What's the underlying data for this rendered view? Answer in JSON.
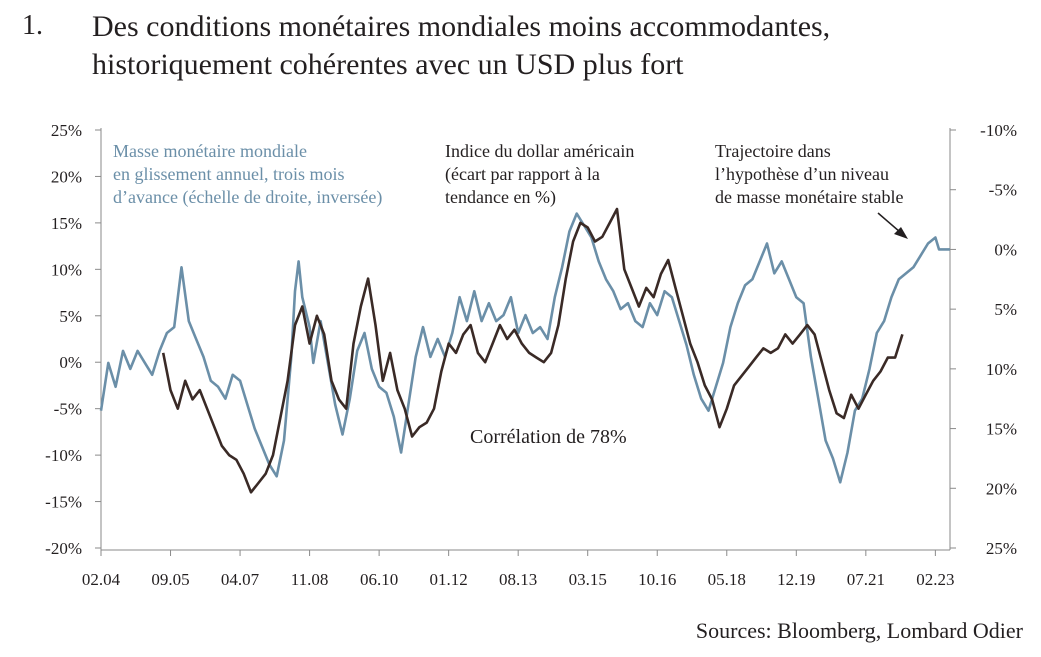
{
  "header": {
    "number": "1.",
    "title_line1": "Des conditions monétaires mondiales moins accommodantes,",
    "title_line2": "historiquement cohérentes avec un USD plus fort"
  },
  "source": "Sources: Bloomberg, Lombard Odier",
  "colors": {
    "money_supply": "#6b8fa8",
    "usd": "#3a2a26",
    "axis": "#8a8a8a"
  },
  "chart_data": {
    "type": "line",
    "grid": false,
    "left_axis": {
      "ylim": [
        -20,
        25
      ],
      "ticks": [
        "25%",
        "20%",
        "15%",
        "10%",
        "5%",
        "0%",
        "-5%",
        "-10%",
        "-15%",
        "-20%"
      ]
    },
    "right_axis": {
      "ylim": [
        25,
        -10
      ],
      "inverted": true,
      "ticks": [
        "-10%",
        "-5%",
        "0%",
        "5%",
        "10%",
        "15%",
        "20%",
        "25%"
      ]
    },
    "x_ticks": [
      "02.04",
      "09.05",
      "04.07",
      "11.08",
      "06.10",
      "01.12",
      "08.13",
      "03.15",
      "10.16",
      "05.18",
      "12.19",
      "07.21",
      "02.23"
    ],
    "x_range": [
      "2004-02",
      "2023-06"
    ],
    "annotations": {
      "money_label": [
        "Masse monétaire mondiale",
        "en glissement annuel, trois mois",
        "d’avance (échelle de droite, inversée)"
      ],
      "usd_label": [
        "Indice du dollar américain",
        "(écart par rapport à la",
        "tendance en %)"
      ],
      "trajectory_label": [
        "Trajectoire dans",
        "l’hypothèse d’un niveau",
        "de masse monétaire stable"
      ],
      "correlation": "Corrélation de 78%"
    },
    "series": [
      {
        "key": "money",
        "axis": "right",
        "points": [
          [
            "2004-02",
            13.5
          ],
          [
            "2004-04",
            9.5
          ],
          [
            "2004-06",
            11.5
          ],
          [
            "2004-08",
            8.5
          ],
          [
            "2004-10",
            10.0
          ],
          [
            "2004-12",
            8.5
          ],
          [
            "2005-02",
            9.5
          ],
          [
            "2005-04",
            10.5
          ],
          [
            "2005-06",
            8.5
          ],
          [
            "2005-08",
            7.0
          ],
          [
            "2005-10",
            6.5
          ],
          [
            "2005-12",
            1.5
          ],
          [
            "2006-02",
            6.0
          ],
          [
            "2006-04",
            7.5
          ],
          [
            "2006-06",
            9.0
          ],
          [
            "2006-08",
            11.0
          ],
          [
            "2006-10",
            11.5
          ],
          [
            "2006-12",
            12.5
          ],
          [
            "2007-02",
            10.5
          ],
          [
            "2007-04",
            11.0
          ],
          [
            "2007-06",
            13.0
          ],
          [
            "2007-08",
            15.0
          ],
          [
            "2007-10",
            16.5
          ],
          [
            "2007-12",
            18.0
          ],
          [
            "2008-02",
            19.0
          ],
          [
            "2008-04",
            16.0
          ],
          [
            "2008-06",
            9.0
          ],
          [
            "2008-07",
            3.5
          ],
          [
            "2008-08",
            1.0
          ],
          [
            "2008-09",
            4.0
          ],
          [
            "2008-11",
            6.5
          ],
          [
            "2008-12",
            9.5
          ],
          [
            "2009-02",
            6.0
          ],
          [
            "2009-04",
            9.5
          ],
          [
            "2009-06",
            13.0
          ],
          [
            "2009-08",
            15.5
          ],
          [
            "2009-10",
            12.5
          ],
          [
            "2009-12",
            8.5
          ],
          [
            "2010-02",
            7.0
          ],
          [
            "2010-04",
            10.0
          ],
          [
            "2010-06",
            11.5
          ],
          [
            "2010-08",
            12.0
          ],
          [
            "2010-10",
            14.0
          ],
          [
            "2010-12",
            17.0
          ],
          [
            "2011-02",
            13.0
          ],
          [
            "2011-04",
            9.0
          ],
          [
            "2011-06",
            6.5
          ],
          [
            "2011-08",
            9.0
          ],
          [
            "2011-10",
            7.5
          ],
          [
            "2011-12",
            9.0
          ],
          [
            "2012-02",
            7.0
          ],
          [
            "2012-04",
            4.0
          ],
          [
            "2012-06",
            6.0
          ],
          [
            "2012-08",
            3.5
          ],
          [
            "2012-10",
            6.0
          ],
          [
            "2012-12",
            4.5
          ],
          [
            "2013-02",
            6.0
          ],
          [
            "2013-04",
            5.5
          ],
          [
            "2013-06",
            4.0
          ],
          [
            "2013-08",
            7.0
          ],
          [
            "2013-10",
            5.5
          ],
          [
            "2013-12",
            7.0
          ],
          [
            "2014-02",
            6.5
          ],
          [
            "2014-04",
            7.5
          ],
          [
            "2014-06",
            4.0
          ],
          [
            "2014-08",
            1.5
          ],
          [
            "2014-10",
            -1.5
          ],
          [
            "2014-12",
            -3.0
          ],
          [
            "2015-02",
            -2.0
          ],
          [
            "2015-04",
            -1.0
          ],
          [
            "2015-06",
            1.0
          ],
          [
            "2015-08",
            2.5
          ],
          [
            "2015-10",
            3.5
          ],
          [
            "2015-12",
            5.0
          ],
          [
            "2016-02",
            4.5
          ],
          [
            "2016-04",
            6.0
          ],
          [
            "2016-06",
            6.5
          ],
          [
            "2016-08",
            4.5
          ],
          [
            "2016-10",
            5.5
          ],
          [
            "2016-12",
            3.5
          ],
          [
            "2017-02",
            4.0
          ],
          [
            "2017-04",
            6.0
          ],
          [
            "2017-06",
            8.0
          ],
          [
            "2017-08",
            10.5
          ],
          [
            "2017-10",
            12.5
          ],
          [
            "2017-12",
            13.5
          ],
          [
            "2018-02",
            11.5
          ],
          [
            "2018-04",
            9.5
          ],
          [
            "2018-06",
            6.5
          ],
          [
            "2018-08",
            4.5
          ],
          [
            "2018-10",
            3.0
          ],
          [
            "2018-12",
            2.5
          ],
          [
            "2019-02",
            1.0
          ],
          [
            "2019-04",
            -0.5
          ],
          [
            "2019-06",
            2.0
          ],
          [
            "2019-08",
            1.0
          ],
          [
            "2019-10",
            2.5
          ],
          [
            "2019-12",
            4.0
          ],
          [
            "2020-02",
            4.5
          ],
          [
            "2020-04",
            9.0
          ],
          [
            "2020-06",
            12.5
          ],
          [
            "2020-08",
            16.0
          ],
          [
            "2020-10",
            17.5
          ],
          [
            "2020-12",
            19.5
          ],
          [
            "2021-02",
            17.0
          ],
          [
            "2021-04",
            13.5
          ],
          [
            "2021-06",
            12.5
          ],
          [
            "2021-08",
            10.0
          ],
          [
            "2021-10",
            7.0
          ],
          [
            "2021-12",
            6.0
          ],
          [
            "2022-02",
            4.0
          ],
          [
            "2022-04",
            2.5
          ],
          [
            "2022-06",
            2.0
          ],
          [
            "2022-08",
            1.5
          ],
          [
            "2022-10",
            0.5
          ],
          [
            "2022-12",
            -0.5
          ],
          [
            "2023-02",
            -1.0
          ],
          [
            "2023-03",
            0.0
          ],
          [
            "2023-04",
            0.0
          ],
          [
            "2023-06",
            0.0
          ]
        ]
      },
      {
        "key": "usd",
        "axis": "left",
        "points": [
          [
            "2005-07",
            1.0
          ],
          [
            "2005-09",
            -3.0
          ],
          [
            "2005-11",
            -5.0
          ],
          [
            "2006-01",
            -2.0
          ],
          [
            "2006-03",
            -4.0
          ],
          [
            "2006-05",
            -3.0
          ],
          [
            "2006-07",
            -5.0
          ],
          [
            "2006-09",
            -7.0
          ],
          [
            "2006-11",
            -9.0
          ],
          [
            "2007-01",
            -10.0
          ],
          [
            "2007-03",
            -10.5
          ],
          [
            "2007-05",
            -12.0
          ],
          [
            "2007-07",
            -14.0
          ],
          [
            "2007-09",
            -13.0
          ],
          [
            "2007-11",
            -12.0
          ],
          [
            "2008-01",
            -10.0
          ],
          [
            "2008-03",
            -6.0
          ],
          [
            "2008-05",
            -2.0
          ],
          [
            "2008-07",
            4.0
          ],
          [
            "2008-09",
            6.0
          ],
          [
            "2008-11",
            2.0
          ],
          [
            "2009-01",
            5.0
          ],
          [
            "2009-03",
            3.0
          ],
          [
            "2009-05",
            -2.0
          ],
          [
            "2009-07",
            -4.0
          ],
          [
            "2009-09",
            -5.0
          ],
          [
            "2009-11",
            2.0
          ],
          [
            "2010-01",
            6.0
          ],
          [
            "2010-03",
            9.0
          ],
          [
            "2010-05",
            4.0
          ],
          [
            "2010-07",
            -2.0
          ],
          [
            "2010-09",
            1.0
          ],
          [
            "2010-11",
            -3.0
          ],
          [
            "2011-01",
            -5.0
          ],
          [
            "2011-03",
            -8.0
          ],
          [
            "2011-05",
            -7.0
          ],
          [
            "2011-07",
            -6.5
          ],
          [
            "2011-09",
            -5.0
          ],
          [
            "2011-11",
            -1.0
          ],
          [
            "2012-01",
            2.0
          ],
          [
            "2012-03",
            1.0
          ],
          [
            "2012-05",
            3.0
          ],
          [
            "2012-07",
            4.0
          ],
          [
            "2012-09",
            1.0
          ],
          [
            "2012-11",
            0.0
          ],
          [
            "2013-01",
            2.0
          ],
          [
            "2013-03",
            4.0
          ],
          [
            "2013-05",
            2.5
          ],
          [
            "2013-07",
            3.5
          ],
          [
            "2013-09",
            2.0
          ],
          [
            "2013-11",
            1.0
          ],
          [
            "2014-01",
            0.5
          ],
          [
            "2014-03",
            0.0
          ],
          [
            "2014-05",
            1.0
          ],
          [
            "2014-07",
            4.0
          ],
          [
            "2014-09",
            9.0
          ],
          [
            "2014-11",
            13.0
          ],
          [
            "2015-01",
            15.0
          ],
          [
            "2015-03",
            14.5
          ],
          [
            "2015-05",
            13.0
          ],
          [
            "2015-07",
            13.5
          ],
          [
            "2015-09",
            15.0
          ],
          [
            "2015-11",
            16.5
          ],
          [
            "2016-01",
            10.0
          ],
          [
            "2016-03",
            8.0
          ],
          [
            "2016-05",
            6.0
          ],
          [
            "2016-07",
            8.0
          ],
          [
            "2016-09",
            7.0
          ],
          [
            "2016-11",
            9.5
          ],
          [
            "2017-01",
            11.0
          ],
          [
            "2017-03",
            8.0
          ],
          [
            "2017-05",
            5.0
          ],
          [
            "2017-07",
            2.0
          ],
          [
            "2017-09",
            0.0
          ],
          [
            "2017-11",
            -2.5
          ],
          [
            "2018-01",
            -4.0
          ],
          [
            "2018-03",
            -7.0
          ],
          [
            "2018-05",
            -5.0
          ],
          [
            "2018-07",
            -2.5
          ],
          [
            "2018-09",
            -1.5
          ],
          [
            "2018-11",
            -0.5
          ],
          [
            "2019-01",
            0.5
          ],
          [
            "2019-03",
            1.5
          ],
          [
            "2019-05",
            1.0
          ],
          [
            "2019-07",
            1.5
          ],
          [
            "2019-09",
            3.0
          ],
          [
            "2019-11",
            2.0
          ],
          [
            "2020-01",
            3.0
          ],
          [
            "2020-03",
            4.0
          ],
          [
            "2020-05",
            3.0
          ],
          [
            "2020-07",
            0.0
          ],
          [
            "2020-09",
            -3.0
          ],
          [
            "2020-11",
            -5.5
          ],
          [
            "2021-01",
            -6.0
          ],
          [
            "2021-03",
            -3.5
          ],
          [
            "2021-05",
            -5.0
          ],
          [
            "2021-07",
            -3.5
          ],
          [
            "2021-09",
            -2.0
          ],
          [
            "2021-11",
            -1.0
          ],
          [
            "2022-01",
            0.5
          ],
          [
            "2022-03",
            0.5
          ],
          [
            "2022-05",
            3.0
          ]
        ]
      }
    ]
  }
}
